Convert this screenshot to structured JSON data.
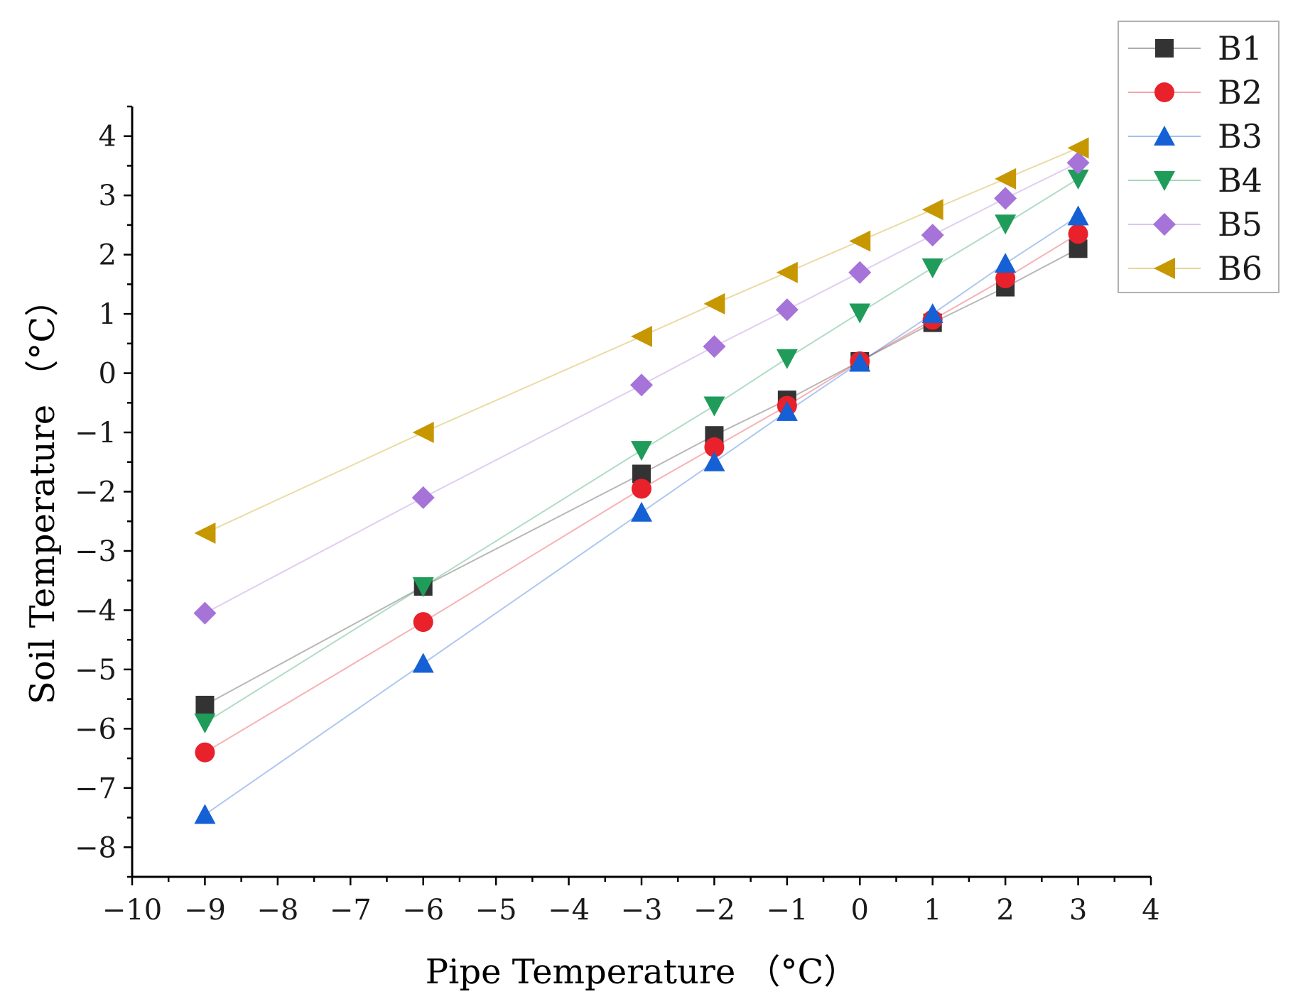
{
  "chart_data": {
    "type": "scatter",
    "title": "",
    "xlabel": "Pipe Temperature （°C）",
    "ylabel": "Soil Temperature （°C）",
    "xlim": [
      -10,
      4
    ],
    "ylim": [
      -8.5,
      4.5
    ],
    "xticks": [
      -10,
      -9,
      -8,
      -7,
      -6,
      -5,
      -4,
      -3,
      -2,
      -1,
      0,
      1,
      2,
      3,
      4
    ],
    "yticks": [
      -8,
      -7,
      -6,
      -5,
      -4,
      -3,
      -2,
      -1,
      0,
      1,
      2,
      3,
      4
    ],
    "x": [
      -9,
      -6,
      -3,
      -2,
      -1,
      0,
      1,
      2,
      3
    ],
    "legend_position": "top-right",
    "series": [
      {
        "name": "B1",
        "marker": "square",
        "color": "#333333",
        "values": [
          -5.6,
          -3.6,
          -1.7,
          -1.05,
          -0.45,
          0.2,
          0.85,
          1.45,
          2.1
        ]
      },
      {
        "name": "B2",
        "marker": "circle",
        "color": "#e8212b",
        "values": [
          -6.4,
          -4.2,
          -1.95,
          -1.25,
          -0.55,
          0.2,
          0.9,
          1.6,
          2.35
        ]
      },
      {
        "name": "B3",
        "marker": "triangle-up",
        "color": "#1560d4",
        "values": [
          -7.45,
          -4.9,
          -2.35,
          -1.5,
          -0.65,
          0.18,
          1.0,
          1.85,
          2.65
        ]
      },
      {
        "name": "B4",
        "marker": "triangle-down",
        "color": "#1f9c5a",
        "values": [
          -5.9,
          -3.6,
          -1.3,
          -0.55,
          0.25,
          1.02,
          1.78,
          2.52,
          3.28
        ]
      },
      {
        "name": "B5",
        "marker": "diamond",
        "color": "#a673d8",
        "values": [
          -4.05,
          -2.1,
          -0.2,
          0.45,
          1.07,
          1.7,
          2.33,
          2.95,
          3.55
        ]
      },
      {
        "name": "B6",
        "marker": "triangle-left",
        "color": "#c79700",
        "values": [
          -2.7,
          -1.0,
          0.62,
          1.17,
          1.7,
          2.23,
          2.76,
          3.28,
          3.8
        ]
      }
    ]
  }
}
